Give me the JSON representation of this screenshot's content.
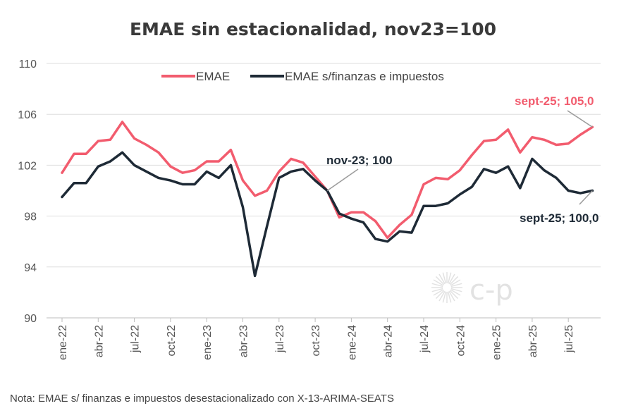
{
  "chart_data": {
    "type": "line",
    "title": "EMAE sin estacionalidad, nov23=100",
    "xlabel": "",
    "ylabel": "",
    "ylim": [
      90,
      110
    ],
    "yticks": [
      "110",
      "106",
      "102",
      "98",
      "94",
      "90"
    ],
    "xtick_labels": [
      "ene-22",
      "abr-22",
      "jul-22",
      "oct-22",
      "ene-23",
      "abr-23",
      "jul-23",
      "oct-23",
      "ene-24",
      "abr-24",
      "jul-24",
      "oct-24",
      "ene-25",
      "abr-25",
      "jul-25"
    ],
    "grid": "horizontal",
    "legend_position": "top",
    "series": [
      {
        "name": "EMAE",
        "color": "#f25c6e",
        "values": [
          101.4,
          102.9,
          102.9,
          103.9,
          104.0,
          105.4,
          104.1,
          103.6,
          103.0,
          101.9,
          101.4,
          101.6,
          102.3,
          102.3,
          103.2,
          100.8,
          99.6,
          100.0,
          101.5,
          102.5,
          102.2,
          101.1,
          100.0,
          97.9,
          98.3,
          98.3,
          97.6,
          96.3,
          97.3,
          98.1,
          100.5,
          101.0,
          100.9,
          101.6,
          102.8,
          103.9,
          104.0,
          104.8,
          103.0,
          104.2,
          104.0,
          103.6,
          103.7,
          104.4,
          105.0
        ]
      },
      {
        "name": "EMAE s/finanzas e impuestos",
        "color": "#1e2a36",
        "values": [
          99.5,
          100.6,
          100.6,
          101.9,
          102.3,
          103.0,
          102.0,
          101.5,
          101.0,
          100.8,
          100.5,
          100.5,
          101.5,
          101.0,
          102.0,
          98.7,
          93.3,
          97.2,
          101.0,
          101.5,
          101.7,
          100.8,
          100.0,
          98.2,
          97.8,
          97.5,
          96.2,
          96.0,
          96.8,
          96.7,
          98.8,
          98.8,
          99.0,
          99.7,
          100.3,
          101.7,
          101.4,
          101.9,
          100.2,
          102.5,
          101.6,
          101.0,
          100.0,
          99.8,
          100.0
        ]
      }
    ],
    "annotations": [
      {
        "text": "sept-25;  105,0",
        "series": 0,
        "index": 44
      },
      {
        "text": "nov-23; 100",
        "series": 1,
        "index": 22
      },
      {
        "text": "sept-25;  100,0",
        "series": 1,
        "index": 44
      }
    ]
  },
  "watermark": "c-p",
  "note": "Nota: EMAE s/ finanzas e impuestos desestacionalizado con X-13-ARIMA-SEATS"
}
